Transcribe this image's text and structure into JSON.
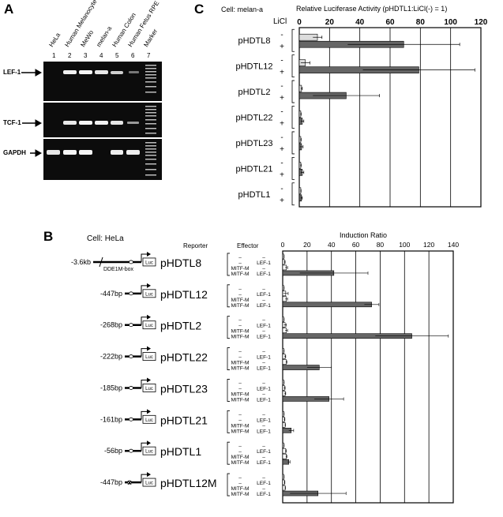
{
  "panels": {
    "a": {
      "letter": "A",
      "lanes": [
        {
          "num": "1",
          "label": "HeLa"
        },
        {
          "num": "2",
          "label": "Human Melanocyte"
        },
        {
          "num": "3",
          "label": "MeWo"
        },
        {
          "num": "4",
          "label": "melan-a"
        },
        {
          "num": "5",
          "label": "Human Colon"
        },
        {
          "num": "6",
          "label": "Human Fetus RPE"
        },
        {
          "num": "7",
          "label": "Marker"
        }
      ],
      "bands": [
        "LEF-1",
        "TCF-1",
        "GAPDH"
      ]
    },
    "c": {
      "letter": "C",
      "cell": "Cell: melan-a",
      "licl": "LiCl",
      "minus": "-",
      "plus": "+"
    },
    "b": {
      "letter": "B",
      "cell": "Cell: HeLa",
      "reporter_header": "Reporter",
      "effector_header": "Effector",
      "dde_label": "DDE1M-box",
      "luc": "Luc",
      "effector_rows": [
        {
          "a": "–",
          "b": "–"
        },
        {
          "a": "–",
          "b": "LEF-1"
        },
        {
          "a": "MITF-M",
          "b": "–"
        },
        {
          "a": "MITF-M",
          "b": "LEF-1"
        }
      ],
      "constructs": [
        {
          "dist": "-3.6kb",
          "name": "pHDTL8"
        },
        {
          "dist": "-447bp",
          "name": "pHDTL12"
        },
        {
          "dist": "-268bp",
          "name": "pHDTL2"
        },
        {
          "dist": "-222bp",
          "name": "pHDTL22"
        },
        {
          "dist": "-185bp",
          "name": "pHDTL23"
        },
        {
          "dist": "-161bp",
          "name": "pHDTL21"
        },
        {
          "dist": "-56bp",
          "name": "pHDTL1"
        },
        {
          "dist": "-447bp",
          "name": "pHDTL12M"
        }
      ]
    }
  },
  "chart_data": [
    {
      "type": "bar",
      "orientation": "horizontal",
      "title": "Relative Luciferase Activity (pHDTL1:LiCl(-) = 1)",
      "xlim": [
        0,
        120
      ],
      "ticks": [
        "0",
        "20",
        "40",
        "60",
        "80",
        "100",
        "120"
      ],
      "categories": [
        "pHDTL8",
        "pHDTL12",
        "pHDTL2",
        "pHDTL22",
        "pHDTL23",
        "pHDTL21",
        "pHDTL1"
      ],
      "series": [
        {
          "name": "-",
          "values": [
            12,
            4,
            1.5,
            1,
            1,
            1,
            1
          ],
          "errors": [
            3,
            3,
            0.5,
            0.3,
            0.3,
            0.3,
            0.2
          ],
          "color": "#dddddd"
        },
        {
          "name": "+",
          "values": [
            69,
            79,
            31,
            2,
            1.5,
            2,
            1.5
          ],
          "errors": [
            37,
            37,
            22,
            1,
            1,
            1,
            0.5
          ],
          "color": "#666666"
        }
      ],
      "grid": true
    },
    {
      "type": "bar",
      "orientation": "horizontal",
      "title": "Induction Ratio",
      "xlim": [
        0,
        140
      ],
      "ticks": [
        "0",
        "20",
        "40",
        "60",
        "80",
        "100",
        "120",
        "140"
      ],
      "categories": [
        "pHDTL8",
        "pHDTL12",
        "pHDTL2",
        "pHDTL22",
        "pHDTL23",
        "pHDTL21",
        "pHDTL1",
        "pHDTL12M"
      ],
      "values": [
        [
          1,
          1.5,
          3,
          42
        ],
        [
          1,
          2.5,
          3,
          73
        ],
        [
          1,
          2,
          3,
          106
        ],
        [
          1,
          2,
          3,
          30
        ],
        [
          1,
          1.5,
          2,
          38
        ],
        [
          1,
          1.5,
          2,
          7
        ],
        [
          1,
          2.5,
          3,
          5
        ],
        [
          1,
          1.5,
          2,
          29
        ]
      ],
      "errors": [
        [
          0.2,
          0.5,
          1,
          28
        ],
        [
          0.2,
          2,
          1,
          6
        ],
        [
          0.2,
          1,
          1,
          30
        ],
        [
          0.2,
          0.5,
          0.5,
          10
        ],
        [
          0.2,
          0.5,
          0.5,
          12
        ],
        [
          0.2,
          0.3,
          0.3,
          2
        ],
        [
          0.2,
          0.5,
          0.5,
          1
        ],
        [
          0.2,
          0.3,
          0.3,
          23
        ]
      ],
      "bar_colors": [
        "#ffffff",
        "#ffffff",
        "#ffffff",
        "#666666"
      ],
      "grid": true
    }
  ]
}
